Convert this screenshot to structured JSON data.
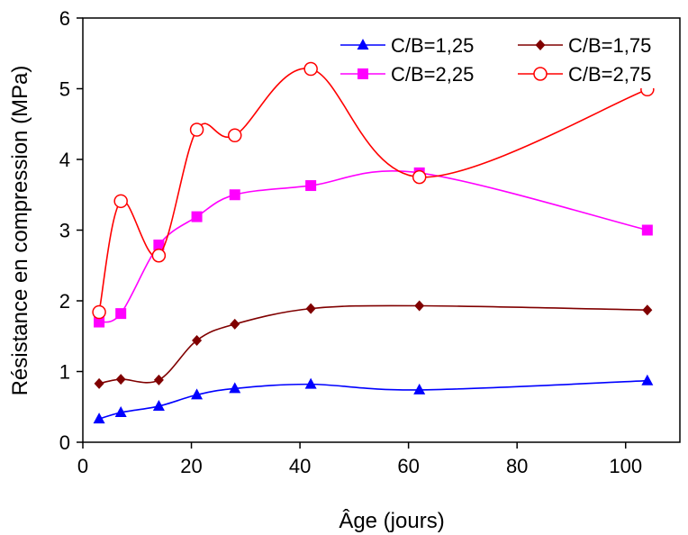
{
  "chart_data": {
    "type": "line",
    "title": "",
    "xlabel": "Âge (jours)",
    "ylabel": "Résistance en compression (MPa)",
    "xlim": [
      0,
      110
    ],
    "ylim": [
      0,
      6
    ],
    "xticks": [
      "0",
      "20",
      "40",
      "60",
      "80",
      "100"
    ],
    "yticks": [
      "0",
      "1",
      "2",
      "3",
      "4",
      "5",
      "6"
    ],
    "grid": false,
    "legend_position": "top-right",
    "series": [
      {
        "name": "C/B=1,25",
        "color": "#0000ff",
        "marker": "triangle",
        "x": [
          3,
          7,
          14,
          21,
          28,
          42,
          62,
          104
        ],
        "y": [
          0.33,
          0.42,
          0.51,
          0.67,
          0.76,
          0.82,
          0.74,
          0.87
        ]
      },
      {
        "name": "C/B=1,75",
        "color": "#800000",
        "marker": "diamond",
        "x": [
          3,
          7,
          14,
          21,
          28,
          42,
          62,
          104
        ],
        "y": [
          0.83,
          0.89,
          0.88,
          1.44,
          1.67,
          1.89,
          1.93,
          1.87
        ]
      },
      {
        "name": "C/B=2,25",
        "color": "#ff00ff",
        "marker": "square",
        "x": [
          3,
          7,
          14,
          21,
          28,
          42,
          62,
          104
        ],
        "y": [
          1.7,
          1.82,
          2.79,
          3.19,
          3.5,
          3.63,
          3.81,
          3.0
        ]
      },
      {
        "name": "C/B=2,75",
        "color": "#ff0000",
        "marker": "open-circle",
        "x": [
          3,
          7,
          14,
          21,
          28,
          42,
          62,
          104
        ],
        "y": [
          1.84,
          3.41,
          2.64,
          4.42,
          4.34,
          5.28,
          3.75,
          4.99
        ]
      }
    ]
  }
}
